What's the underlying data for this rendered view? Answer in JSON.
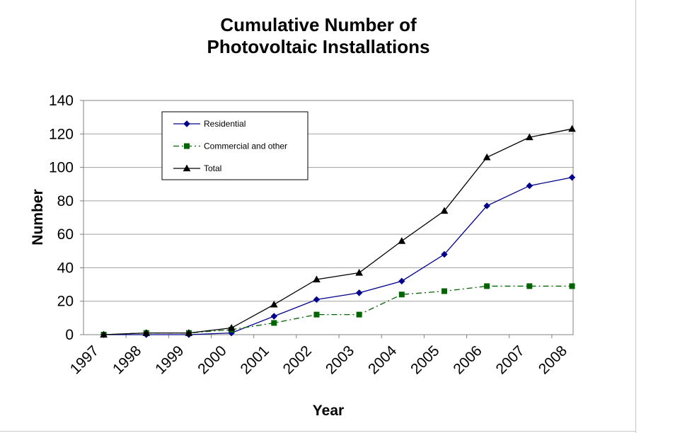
{
  "chart_data": {
    "type": "line",
    "title": [
      "Cumulative Number of",
      "Photovoltaic Installations"
    ],
    "xlabel": "Year",
    "ylabel": "Number",
    "categories": [
      "1997",
      "1998",
      "1999",
      "2000",
      "2001",
      "2002",
      "2003",
      "2004",
      "2005",
      "2006",
      "2007",
      "2008"
    ],
    "ylim": [
      0,
      140
    ],
    "yticks": [
      "0",
      "20",
      "40",
      "60",
      "80",
      "100",
      "120",
      "140"
    ],
    "grid": true,
    "legend_position": "top-left",
    "series": [
      {
        "name": "Residential",
        "values": [
          0,
          0,
          0,
          1,
          11,
          21,
          25,
          32,
          48,
          77,
          89,
          94
        ],
        "color": "#00008b",
        "marker": "diamond",
        "dash": "solid"
      },
      {
        "name": "Commercial and other",
        "values": [
          0,
          1,
          1,
          3,
          7,
          12,
          12,
          24,
          26,
          29,
          29,
          29
        ],
        "color": "#006400",
        "marker": "square",
        "dash": "dashdot"
      },
      {
        "name": "Total",
        "values": [
          0,
          1,
          1,
          4,
          18,
          33,
          37,
          56,
          74,
          106,
          118,
          123
        ],
        "color": "#000000",
        "marker": "triangle",
        "dash": "solid"
      }
    ]
  }
}
